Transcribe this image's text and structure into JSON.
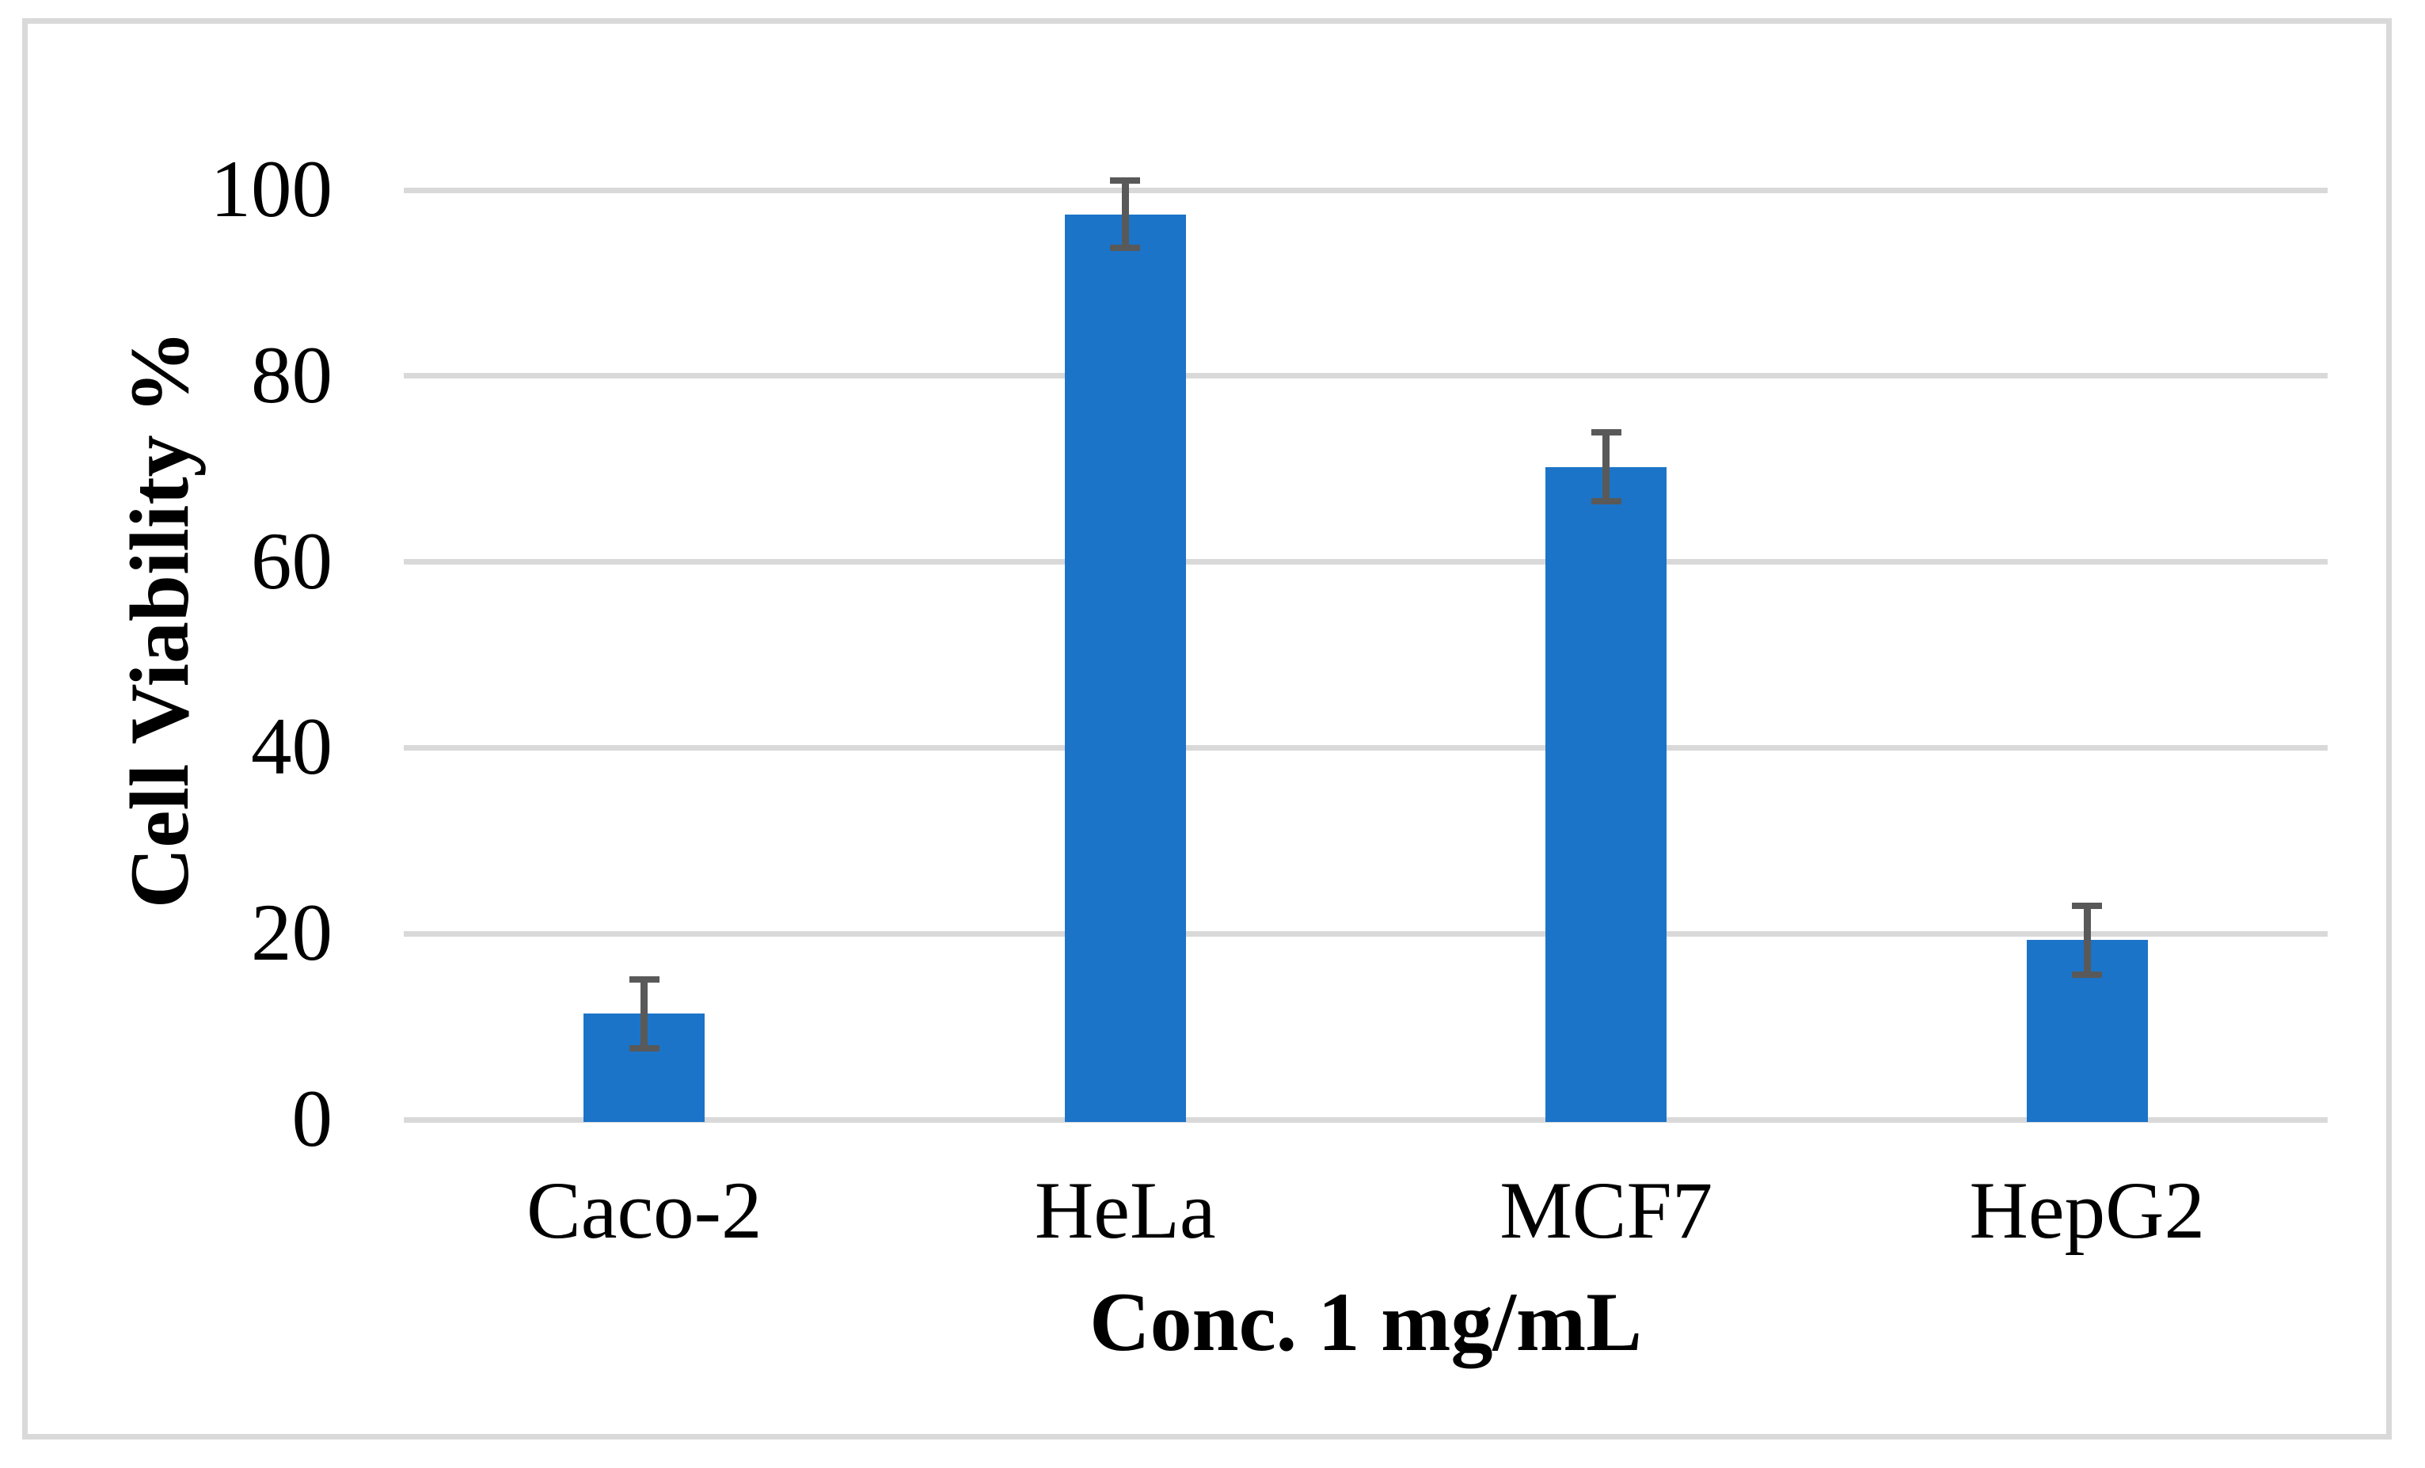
{
  "figure": {
    "background_color": "#ffffff",
    "frame_border_color": "#d9d9d9",
    "text_color": "#000000"
  },
  "chart_data": {
    "type": "bar",
    "title": "",
    "categories": [
      "Caco-2",
      "HeLa",
      "MCF7",
      "HepG2"
    ],
    "values": [
      11.4,
      97.4,
      70.2,
      19.3
    ],
    "errors": [
      3.7,
      3.6,
      3.7,
      3.7
    ],
    "xlabel": "Conc. 1 mg/mL",
    "ylabel": "Cell Viability %",
    "ylim": [
      0,
      100
    ],
    "y_ticks": [
      0,
      20,
      40,
      60,
      80,
      100
    ],
    "grid": true,
    "legend": "none",
    "bar_color": "#1b74c8",
    "error_bar_color": "#595959",
    "gridline_color": "#d9d9d9"
  }
}
